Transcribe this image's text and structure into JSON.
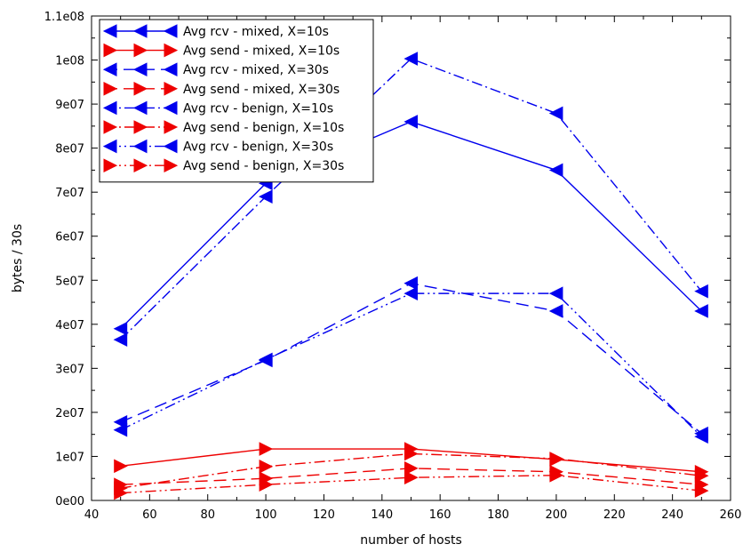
{
  "chart_data": {
    "type": "line",
    "xlabel": "number of hosts",
    "ylabel": "bytes / 30s",
    "xlim": [
      40,
      260
    ],
    "ylim": [
      0,
      110000000
    ],
    "x_ticks": [
      "40",
      "60",
      "80",
      "100",
      "120",
      "140",
      "160",
      "180",
      "200",
      "220",
      "240",
      "260"
    ],
    "y_ticks": [
      "0e00",
      "1e07",
      "2e07",
      "3e07",
      "4e07",
      "5e07",
      "6e07",
      "7e07",
      "8e07",
      "9e07",
      "1e08",
      "1.1e08"
    ],
    "grid": false,
    "legend_position": "top-left",
    "x": [
      50,
      100,
      150,
      200,
      250
    ],
    "series": [
      {
        "name": "Avg rcv - mixed, X=10s",
        "color": "#0000ee",
        "dash": "solid",
        "marker": "left",
        "values": [
          39000000,
          72000000,
          86000000,
          75000000,
          43000000
        ]
      },
      {
        "name": "Avg send - mixed, X=10s",
        "color": "#ee0000",
        "dash": "solid",
        "marker": "right",
        "values": [
          7800000,
          11700000,
          11700000,
          9300000,
          6500000
        ]
      },
      {
        "name": "Avg rcv - mixed, X=30s",
        "color": "#0000ee",
        "dash": "dash",
        "marker": "left",
        "values": [
          17800000,
          31800000,
          49300000,
          43000000,
          15200000
        ]
      },
      {
        "name": "Avg send - mixed, X=30s",
        "color": "#ee0000",
        "dash": "dash",
        "marker": "right",
        "values": [
          3600000,
          5000000,
          7300000,
          6500000,
          3600000
        ]
      },
      {
        "name": "Avg rcv - benign, X=10s",
        "color": "#0000ee",
        "dash": "dashdot",
        "marker": "left",
        "values": [
          36500000,
          69000000,
          100300000,
          87900000,
          47500000
        ]
      },
      {
        "name": "Avg send - benign, X=10s",
        "color": "#ee0000",
        "dash": "dashdot",
        "marker": "right",
        "values": [
          2800000,
          7700000,
          10600000,
          9500000,
          5600000
        ]
      },
      {
        "name": "Avg rcv - benign, X=30s",
        "color": "#0000ee",
        "dash": "dashdotdot",
        "marker": "left",
        "values": [
          16000000,
          32000000,
          47000000,
          47000000,
          14500000
        ]
      },
      {
        "name": "Avg send - benign, X=30s",
        "color": "#ee0000",
        "dash": "dashdotdot",
        "marker": "right",
        "values": [
          1700000,
          3600000,
          5200000,
          5700000,
          2200000
        ]
      }
    ]
  }
}
